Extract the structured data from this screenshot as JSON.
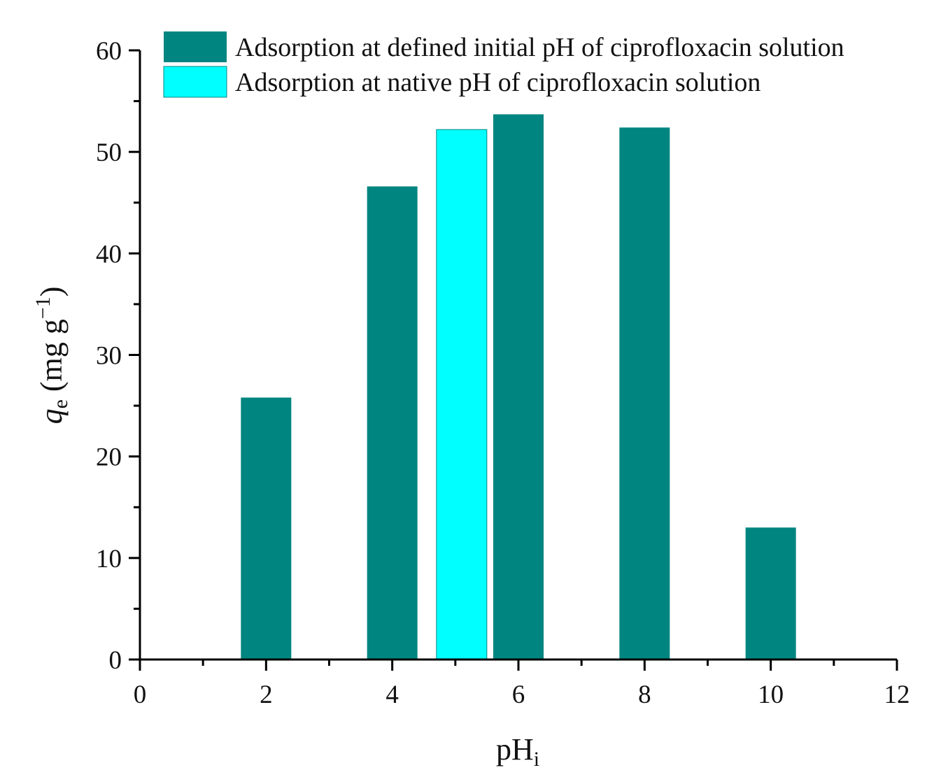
{
  "chart_data": {
    "type": "bar",
    "title": "",
    "xlabel": {
      "main": "pH",
      "subscript": "i"
    },
    "ylabel": {
      "symbol": "q",
      "subscript": "e",
      "units_open": " (mg g",
      "superscript": "−1",
      "units_close": ")"
    },
    "xlim": [
      0,
      12
    ],
    "ylim": [
      0,
      60
    ],
    "x_ticks": [
      0,
      2,
      4,
      6,
      8,
      10,
      12
    ],
    "x_tick_labels": [
      "0",
      "2",
      "4",
      "6",
      "8",
      "10",
      "12"
    ],
    "y_ticks": [
      0,
      10,
      20,
      30,
      40,
      50,
      60
    ],
    "y_tick_labels": [
      "0",
      "10",
      "20",
      "30",
      "40",
      "50",
      "60"
    ],
    "grid": false,
    "legend_position": "top",
    "series": [
      {
        "name": "Adsorption at defined initial pH of ciprofloxacin solution",
        "color": "#008580",
        "points": [
          {
            "x": 2,
            "y": 25.8
          },
          {
            "x": 4,
            "y": 46.6
          },
          {
            "x": 6,
            "y": 53.7
          },
          {
            "x": 8,
            "y": 52.4
          },
          {
            "x": 10,
            "y": 13.0
          }
        ]
      },
      {
        "name": "Adsorption at native pH of ciprofloxacin solution",
        "color": "#00ffff",
        "points": [
          {
            "x": 5.1,
            "y": 52.2
          }
        ]
      }
    ]
  }
}
